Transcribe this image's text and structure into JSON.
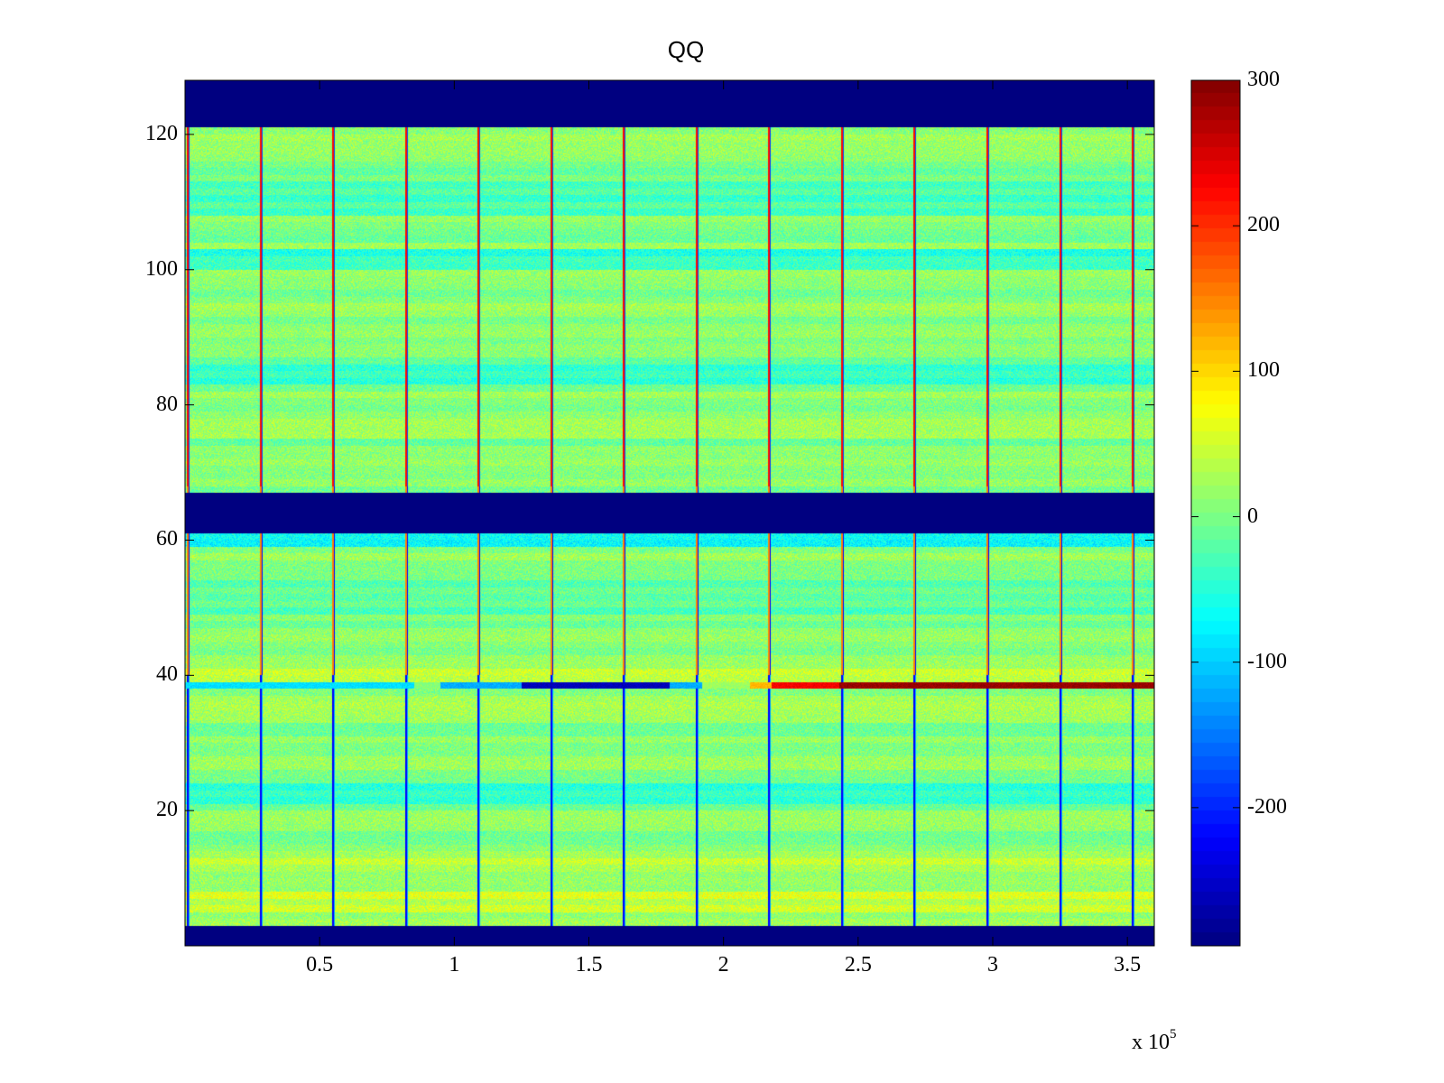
{
  "chart_data": {
    "type": "heatmap",
    "title": "QQ",
    "xlabel": "",
    "ylabel": "",
    "x_exponent_label": {
      "base": "x 10",
      "power": "5"
    },
    "xlim": [
      0,
      360000
    ],
    "ylim": [
      0,
      128
    ],
    "x_ticks": [
      {
        "value": 50000,
        "label": "0.5"
      },
      {
        "value": 100000,
        "label": "1"
      },
      {
        "value": 150000,
        "label": "1.5"
      },
      {
        "value": 200000,
        "label": "2"
      },
      {
        "value": 250000,
        "label": "2.5"
      },
      {
        "value": 300000,
        "label": "3"
      },
      {
        "value": 350000,
        "label": "3.5"
      }
    ],
    "y_ticks": [
      {
        "value": 20,
        "label": "20"
      },
      {
        "value": 40,
        "label": "40"
      },
      {
        "value": 60,
        "label": "60"
      },
      {
        "value": 80,
        "label": "80"
      },
      {
        "value": 100,
        "label": "100"
      },
      {
        "value": 120,
        "label": "120"
      }
    ],
    "colorbar": {
      "colormap": "jet",
      "range": [
        -295,
        300
      ],
      "ticks": [
        {
          "value": 300,
          "label": "300"
        },
        {
          "value": 200,
          "label": "200"
        },
        {
          "value": 100,
          "label": "100"
        },
        {
          "value": 0,
          "label": "0"
        },
        {
          "value": -100,
          "label": "-100"
        },
        {
          "value": -200,
          "label": "-200"
        }
      ]
    },
    "baseline_value": 5,
    "empty_row_bands": [
      [
        0,
        3
      ],
      [
        61,
        67
      ],
      [
        121,
        128
      ]
    ],
    "vertical_spike_columns_x": [
      1000,
      28000,
      55000,
      82000,
      109000,
      136000,
      163000,
      190000,
      217000,
      244000,
      271000,
      298000,
      325000,
      352000
    ],
    "row_offsets": [
      {
        "rows": [
          5,
          7
        ],
        "value": 40
      },
      {
        "rows": [
          11,
          13
        ],
        "value": 30
      },
      {
        "rows": [
          21,
          23
        ],
        "value": -50
      },
      {
        "rows": [
          33,
          35
        ],
        "value": 25
      },
      {
        "rows": [
          39,
          40
        ],
        "value": 45
      },
      {
        "rows": [
          49,
          53
        ],
        "value": -20
      },
      {
        "rows": [
          59,
          61
        ],
        "value": -60
      },
      {
        "rows": [
          75,
          77
        ],
        "value": 20
      },
      {
        "rows": [
          83,
          85
        ],
        "value": -55
      },
      {
        "rows": [
          100,
          102
        ],
        "value": -45
      },
      {
        "rows": [
          108,
          112
        ],
        "value": -35
      }
    ],
    "highlight_row": {
      "row": 38,
      "segments": [
        {
          "x": [
            0,
            85000
          ],
          "value": -90
        },
        {
          "x": [
            85000,
            95000
          ],
          "value": 5
        },
        {
          "x": [
            95000,
            125000
          ],
          "value": -120
        },
        {
          "x": [
            125000,
            180000
          ],
          "value": -260
        },
        {
          "x": [
            180000,
            192000
          ],
          "value": -120
        },
        {
          "x": [
            192000,
            210000
          ],
          "value": 20
        },
        {
          "x": [
            210000,
            218000
          ],
          "value": 120
        },
        {
          "x": [
            218000,
            243000
          ],
          "value": 230
        },
        {
          "x": [
            243000,
            360000
          ],
          "value": 285
        }
      ]
    }
  }
}
